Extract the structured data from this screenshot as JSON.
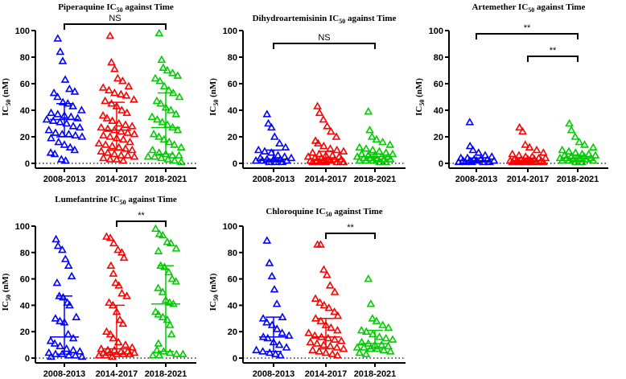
{
  "chart_data": [
    {
      "type": "scatter",
      "title": {
        "prefix": "Piperaquine IC",
        "sub": "50",
        "suffix": " against Time"
      },
      "ylabel": {
        "prefix": "IC",
        "sub": "50",
        "suffix": " (nM)"
      },
      "categories": [
        "2008-2013",
        "2014-2017",
        "2018-2021"
      ],
      "ylim": [
        0,
        100
      ],
      "yticks": [
        0,
        20,
        40,
        60,
        80,
        100
      ],
      "colors": [
        "#0000ff",
        "#ff0000",
        "#00cc00"
      ],
      "groups": [
        {
          "median": 33,
          "q1": 20,
          "q3": 45,
          "values": [
            94,
            84,
            77,
            63,
            56,
            54,
            53,
            50,
            46,
            45,
            43,
            40,
            38,
            37,
            36,
            35,
            34,
            33,
            32,
            31,
            30,
            28,
            27,
            25,
            23,
            22,
            22,
            21,
            20,
            19,
            16,
            14,
            12,
            10,
            8,
            7,
            3,
            2
          ]
        },
        {
          "median": 25,
          "q1": 10,
          "q3": 46,
          "values": [
            96,
            76,
            71,
            64,
            62,
            58,
            57,
            55,
            53,
            52,
            51,
            48,
            47,
            45,
            43,
            40,
            38,
            36,
            34,
            32,
            30,
            29,
            28,
            27,
            26,
            25,
            24,
            23,
            22,
            21,
            20,
            19,
            18,
            16,
            15,
            14,
            13,
            12,
            11,
            10,
            9,
            8,
            7,
            6,
            6,
            5,
            4,
            3,
            3,
            2
          ]
        },
        {
          "median": 27,
          "q1": 7,
          "q3": 53,
          "values": [
            98,
            78,
            72,
            70,
            68,
            66,
            64,
            62,
            58,
            55,
            53,
            50,
            47,
            45,
            42,
            40,
            37,
            35,
            33,
            31,
            29,
            27,
            25,
            22,
            20,
            18,
            16,
            14,
            12,
            10,
            8,
            7,
            6,
            6,
            5,
            5,
            4,
            3,
            2,
            1
          ]
        }
      ]
    },
    {
      "type": "scatter",
      "title": {
        "prefix": "Dihydroartemisinin IC",
        "sub": "50",
        "suffix": " against Time"
      },
      "ylabel": {
        "prefix": "IC",
        "sub": "50",
        "suffix": " (nM)"
      },
      "categories": [
        "2008-2013",
        "2014-2017",
        "2018-2021"
      ],
      "ylim": [
        0,
        100
      ],
      "yticks": [
        0,
        20,
        40,
        60,
        80,
        100
      ],
      "colors": [
        "#0000ff",
        "#ff0000",
        "#00cc00"
      ],
      "groups": [
        {
          "median": 3,
          "q1": 2,
          "q3": 10,
          "values": [
            37,
            30,
            27,
            20,
            15,
            12,
            10,
            9,
            8,
            6,
            5,
            4,
            4,
            3,
            3,
            3,
            2,
            2,
            2,
            1,
            1,
            1
          ]
        },
        {
          "median": 3,
          "q1": 1,
          "q3": 9,
          "values": [
            43,
            38,
            33,
            28,
            24,
            20,
            17,
            15,
            13,
            11,
            10,
            9,
            8,
            7,
            6,
            6,
            5,
            5,
            4,
            4,
            3,
            3,
            3,
            2,
            2,
            2,
            2,
            1,
            1,
            1,
            1,
            1
          ]
        },
        {
          "median": 5,
          "q1": 2,
          "q3": 7,
          "values": [
            39,
            25,
            20,
            18,
            16,
            14,
            12,
            11,
            10,
            9,
            8,
            7,
            7,
            6,
            6,
            5,
            5,
            5,
            4,
            4,
            3,
            3,
            3,
            2,
            2,
            2,
            1,
            1
          ]
        }
      ]
    },
    {
      "type": "scatter",
      "title": {
        "prefix": "Artemether IC",
        "sub": "50",
        "suffix": " against Time"
      },
      "ylabel": {
        "prefix": "IC",
        "sub": "50",
        "suffix": " (nM)"
      },
      "categories": [
        "2008-2013",
        "2014-2017",
        "2018-2021"
      ],
      "ylim": [
        0,
        100
      ],
      "yticks": [
        0,
        20,
        40,
        60,
        80,
        100
      ],
      "colors": [
        "#0000ff",
        "#ff0000",
        "#00cc00"
      ],
      "groups": [
        {
          "median": 2,
          "q1": 1,
          "q3": 4,
          "values": [
            31,
            13,
            10,
            8,
            6,
            5,
            4,
            4,
            3,
            3,
            3,
            2,
            2,
            2,
            2,
            1,
            1,
            1,
            1,
            1
          ]
        },
        {
          "median": 2,
          "q1": 1,
          "q3": 4,
          "values": [
            27,
            24,
            14,
            12,
            10,
            8,
            7,
            6,
            5,
            5,
            4,
            4,
            3,
            3,
            3,
            3,
            2,
            2,
            2,
            2,
            2,
            1,
            1,
            1,
            1,
            1,
            1
          ]
        },
        {
          "median": 4,
          "q1": 2,
          "q3": 6,
          "values": [
            30,
            25,
            20,
            16,
            14,
            12,
            10,
            9,
            8,
            7,
            7,
            6,
            6,
            5,
            5,
            5,
            4,
            4,
            4,
            3,
            3,
            3,
            2,
            2,
            2,
            1,
            1
          ]
        }
      ]
    },
    {
      "type": "scatter",
      "title": {
        "prefix": "Lumefantrine IC",
        "sub": "50",
        "suffix": " against Time"
      },
      "ylabel": {
        "prefix": "IC",
        "sub": "50",
        "suffix": " (nM)"
      },
      "categories": [
        "2008-2013",
        "2014-2017",
        "2018-2021"
      ],
      "ylim": [
        0,
        100
      ],
      "yticks": [
        0,
        20,
        40,
        60,
        80,
        100
      ],
      "colors": [
        "#0000ff",
        "#ff0000",
        "#00cc00"
      ],
      "groups": [
        {
          "median": 16,
          "q1": 3,
          "q3": 47,
          "values": [
            90,
            85,
            82,
            75,
            70,
            62,
            57,
            47,
            46,
            42,
            40,
            31,
            30,
            28,
            27,
            18,
            15,
            13,
            11,
            9,
            7,
            6,
            5,
            4,
            3,
            3,
            2,
            2,
            1,
            1
          ]
        },
        {
          "median": 7,
          "q1": 3,
          "q3": 40,
          "values": [
            92,
            91,
            87,
            82,
            80,
            76,
            70,
            64,
            57,
            55,
            49,
            47,
            42,
            40,
            35,
            29,
            26,
            20,
            18,
            15,
            12,
            10,
            8,
            7,
            6,
            6,
            5,
            5,
            4,
            4,
            4,
            3,
            3,
            3,
            2,
            2,
            1
          ]
        },
        {
          "median": 41,
          "q1": 5,
          "q3": 70,
          "values": [
            98,
            94,
            93,
            88,
            87,
            83,
            81,
            70,
            69,
            65,
            60,
            58,
            53,
            50,
            44,
            42,
            41,
            35,
            33,
            31,
            29,
            25,
            18,
            11,
            6,
            5,
            4,
            3,
            3,
            2,
            2
          ]
        }
      ]
    },
    {
      "type": "scatter",
      "title": {
        "prefix": "Chloroquine IC",
        "sub": "50",
        "suffix": " against Time"
      },
      "ylabel": {
        "prefix": "IC",
        "sub": "50",
        "suffix": " (nM)"
      },
      "categories": [
        "2008-2013",
        "2014-2017",
        "2018-2021"
      ],
      "ylim": [
        0,
        100
      ],
      "yticks": [
        0,
        20,
        40,
        60,
        80,
        100
      ],
      "colors": [
        "#0000ff",
        "#ff0000",
        "#00cc00"
      ],
      "groups": [
        {
          "median": 16,
          "q1": 5,
          "q3": 31,
          "values": [
            89,
            72,
            62,
            52,
            41,
            31,
            30,
            27,
            25,
            22,
            19,
            17,
            16,
            15,
            12,
            10,
            8,
            6,
            5,
            4,
            3,
            2
          ]
        },
        {
          "median": 16,
          "q1": 7,
          "q3": 30,
          "values": [
            86,
            86,
            67,
            63,
            55,
            50,
            45,
            42,
            40,
            38,
            35,
            32,
            30,
            28,
            25,
            23,
            21,
            19,
            17,
            16,
            15,
            14,
            13,
            12,
            11,
            10,
            9,
            8,
            7,
            6,
            5,
            4,
            3,
            2
          ]
        },
        {
          "median": 11,
          "q1": 7,
          "q3": 21,
          "values": [
            60,
            41,
            30,
            28,
            25,
            23,
            21,
            20,
            18,
            16,
            15,
            14,
            12,
            11,
            10,
            10,
            9,
            8,
            8,
            7,
            7,
            6,
            5,
            4,
            3
          ]
        }
      ]
    }
  ],
  "significance": [
    [
      {
        "from": 0,
        "to": 2,
        "label": "NS"
      }
    ],
    [
      {
        "from": 0,
        "to": 2,
        "label": "NS"
      }
    ],
    [
      {
        "from": 0,
        "to": 2,
        "label": "**"
      },
      {
        "from": 1,
        "to": 2,
        "label": "**"
      }
    ],
    [
      {
        "from": 1,
        "to": 2,
        "label": "**"
      }
    ],
    [
      {
        "from": 1,
        "to": 2,
        "label": "**"
      }
    ]
  ]
}
